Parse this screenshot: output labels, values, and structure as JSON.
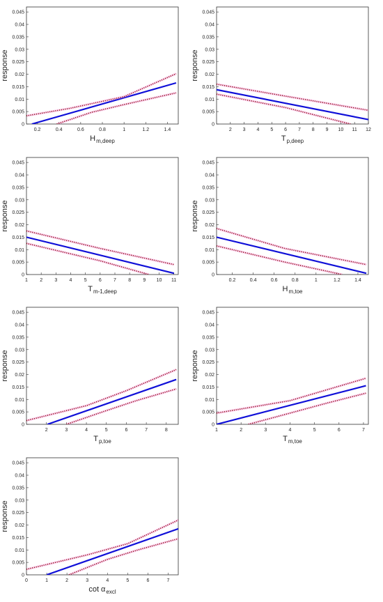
{
  "chart_data": [
    {
      "type": "line",
      "ylabel": "response",
      "xlabel": {
        "main": "H",
        "sub": "m,deep"
      },
      "xlim": [
        0.1,
        1.5
      ],
      "ylim": [
        0,
        0.047
      ],
      "xticks": [
        0.2,
        0.4,
        0.6,
        0.8,
        1,
        1.2,
        1.4
      ],
      "xtick_labels": [
        "0.2",
        "0.4",
        "0.6",
        "0.8",
        "1",
        "1.2",
        "1.4"
      ],
      "yticks": [
        0,
        0.005,
        0.01,
        0.015,
        0.02,
        0.025,
        0.03,
        0.035,
        0.04,
        0.045
      ],
      "ytick_labels": [
        "0",
        "0.005",
        "0.01",
        "0.015",
        "0.02",
        "0.025",
        "0.03",
        "0.035",
        "0.04",
        "0.045"
      ],
      "series": [
        {
          "role": "fit",
          "x": [
            0.15,
            1.48
          ],
          "y": [
            0.0,
            0.0165
          ]
        },
        {
          "role": "upper",
          "x": [
            0.1,
            0.5,
            1.0,
            1.48
          ],
          "y": [
            0.0033,
            0.0063,
            0.011,
            0.0202
          ]
        },
        {
          "role": "lower",
          "x": [
            0.38,
            0.7,
            1.0,
            1.48
          ],
          "y": [
            0.0,
            0.0047,
            0.0078,
            0.0125
          ]
        }
      ]
    },
    {
      "type": "line",
      "ylabel": "response",
      "xlabel": {
        "main": "T",
        "sub": "p,deep"
      },
      "xlim": [
        1,
        12
      ],
      "ylim": [
        0,
        0.047
      ],
      "xticks": [
        2,
        3,
        4,
        5,
        6,
        7,
        8,
        9,
        10,
        11,
        12
      ],
      "xtick_labels": [
        "2",
        "3",
        "4",
        "5",
        "6",
        "7",
        "8",
        "9",
        "10",
        "11",
        "12"
      ],
      "yticks": [
        0,
        0.005,
        0.01,
        0.015,
        0.02,
        0.025,
        0.03,
        0.035,
        0.04,
        0.045
      ],
      "ytick_labels": [
        "0",
        "0.005",
        "0.01",
        "0.015",
        "0.02",
        "0.025",
        "0.03",
        "0.035",
        "0.04",
        "0.045"
      ],
      "series": [
        {
          "role": "fit",
          "x": [
            1,
            12
          ],
          "y": [
            0.0138,
            0.0018
          ]
        },
        {
          "role": "upper",
          "x": [
            1,
            6,
            12
          ],
          "y": [
            0.016,
            0.0112,
            0.0055
          ]
        },
        {
          "role": "lower",
          "x": [
            1,
            6,
            10.7
          ],
          "y": [
            0.012,
            0.0066,
            0.0
          ]
        }
      ]
    },
    {
      "type": "line",
      "ylabel": "response",
      "xlabel": {
        "main": "T",
        "sub": "m-1,deep"
      },
      "xlim": [
        1,
        11.3
      ],
      "ylim": [
        0,
        0.047
      ],
      "xticks": [
        1,
        2,
        3,
        4,
        5,
        6,
        7,
        8,
        9,
        10,
        11
      ],
      "xtick_labels": [
        "1",
        "2",
        "3",
        "4",
        "5",
        "6",
        "7",
        "8",
        "9",
        "10",
        "11"
      ],
      "yticks": [
        0,
        0.005,
        0.01,
        0.015,
        0.02,
        0.025,
        0.03,
        0.035,
        0.04,
        0.045
      ],
      "ytick_labels": [
        "0",
        "0.005",
        "0.01",
        "0.015",
        "0.02",
        "0.025",
        "0.03",
        "0.035",
        "0.04",
        "0.045"
      ],
      "series": [
        {
          "role": "fit",
          "x": [
            1,
            11
          ],
          "y": [
            0.015,
            0.0005
          ]
        },
        {
          "role": "upper",
          "x": [
            1,
            6,
            11
          ],
          "y": [
            0.0175,
            0.0105,
            0.004
          ]
        },
        {
          "role": "lower",
          "x": [
            1,
            6,
            9.3
          ],
          "y": [
            0.0125,
            0.0055,
            0.0
          ]
        }
      ]
    },
    {
      "type": "line",
      "ylabel": "response",
      "xlabel": {
        "main": "H",
        "sub": "m,toe"
      },
      "xlim": [
        0.05,
        1.5
      ],
      "ylim": [
        0,
        0.047
      ],
      "xticks": [
        0.2,
        0.4,
        0.6,
        0.8,
        1,
        1.2,
        1.4
      ],
      "xtick_labels": [
        "0.2",
        "0.4",
        "0.6",
        "0.8",
        "1",
        "1.2",
        "1.4"
      ],
      "yticks": [
        0,
        0.005,
        0.01,
        0.015,
        0.02,
        0.025,
        0.03,
        0.035,
        0.04,
        0.045
      ],
      "ytick_labels": [
        "0",
        "0.005",
        "0.01",
        "0.015",
        "0.02",
        "0.025",
        "0.03",
        "0.035",
        "0.04",
        "0.045"
      ],
      "series": [
        {
          "role": "fit",
          "x": [
            0.05,
            1.48
          ],
          "y": [
            0.015,
            0.0005
          ]
        },
        {
          "role": "upper",
          "x": [
            0.05,
            0.7,
            1.48
          ],
          "y": [
            0.0185,
            0.0105,
            0.004
          ]
        },
        {
          "role": "lower",
          "x": [
            0.05,
            0.7,
            1.25
          ],
          "y": [
            0.0115,
            0.005,
            0.0
          ]
        }
      ]
    },
    {
      "type": "line",
      "ylabel": "response",
      "xlabel": {
        "main": "T",
        "sub": "p,toe"
      },
      "xlim": [
        1,
        8.6
      ],
      "ylim": [
        0,
        0.047
      ],
      "xticks": [
        2,
        3,
        4,
        5,
        6,
        7,
        8
      ],
      "xtick_labels": [
        "2",
        "3",
        "4",
        "5",
        "6",
        "7",
        "8"
      ],
      "yticks": [
        0,
        0.005,
        0.01,
        0.015,
        0.02,
        0.025,
        0.03,
        0.035,
        0.04,
        0.045
      ],
      "ytick_labels": [
        "0",
        "0.005",
        "0.01",
        "0.015",
        "0.02",
        "0.025",
        "0.03",
        "0.035",
        "0.04",
        "0.045"
      ],
      "series": [
        {
          "role": "fit",
          "x": [
            2.05,
            8.5
          ],
          "y": [
            0.0,
            0.018
          ]
        },
        {
          "role": "upper",
          "x": [
            1,
            4,
            6,
            8.5
          ],
          "y": [
            0.0015,
            0.0075,
            0.0135,
            0.022
          ]
        },
        {
          "role": "lower",
          "x": [
            3.0,
            5,
            6.5,
            8.5
          ],
          "y": [
            0.0,
            0.0055,
            0.0095,
            0.0142
          ]
        }
      ]
    },
    {
      "type": "line",
      "ylabel": "response",
      "xlabel": {
        "main": "T",
        "sub": "m,toe"
      },
      "xlim": [
        1,
        7.2
      ],
      "ylim": [
        0,
        0.047
      ],
      "xticks": [
        1,
        2,
        3,
        4,
        5,
        6,
        7
      ],
      "xtick_labels": [
        "1",
        "2",
        "3",
        "4",
        "5",
        "6",
        "7"
      ],
      "yticks": [
        0,
        0.005,
        0.01,
        0.015,
        0.02,
        0.025,
        0.03,
        0.035,
        0.04,
        0.045
      ],
      "ytick_labels": [
        "0",
        "0.005",
        "0.01",
        "0.015",
        "0.02",
        "0.025",
        "0.03",
        "0.035",
        "0.04",
        "0.045"
      ],
      "series": [
        {
          "role": "fit",
          "x": [
            1,
            7.1
          ],
          "y": [
            0.0,
            0.0155
          ]
        },
        {
          "role": "upper",
          "x": [
            1,
            4,
            7.1
          ],
          "y": [
            0.0045,
            0.0095,
            0.0185
          ]
        },
        {
          "role": "lower",
          "x": [
            2.3,
            4,
            5.5,
            7.1
          ],
          "y": [
            0.0,
            0.0045,
            0.0085,
            0.0125
          ]
        }
      ]
    },
    {
      "type": "line",
      "ylabel": "response",
      "xlabel": {
        "main": "cot α",
        "sub": "excl"
      },
      "xlim": [
        0,
        7.5
      ],
      "ylim": [
        0,
        0.047
      ],
      "xticks": [
        0,
        1,
        2,
        3,
        4,
        5,
        6,
        7
      ],
      "xtick_labels": [
        "0",
        "1",
        "2",
        "3",
        "4",
        "5",
        "6",
        "7"
      ],
      "yticks": [
        0,
        0.005,
        0.01,
        0.015,
        0.02,
        0.025,
        0.03,
        0.035,
        0.04,
        0.045
      ],
      "ytick_labels": [
        "0",
        "0.005",
        "0.01",
        "0.015",
        "0.02",
        "0.025",
        "0.03",
        "0.035",
        "0.04",
        "0.045"
      ],
      "series": [
        {
          "role": "fit",
          "x": [
            1.0,
            7.5
          ],
          "y": [
            0.0,
            0.0185
          ]
        },
        {
          "role": "upper",
          "x": [
            0,
            3,
            5,
            7.5
          ],
          "y": [
            0.0022,
            0.008,
            0.0125,
            0.022
          ]
        },
        {
          "role": "lower",
          "x": [
            2.1,
            4,
            5.5,
            7.5
          ],
          "y": [
            0.0,
            0.0062,
            0.01,
            0.0145
          ]
        }
      ]
    }
  ],
  "style": {
    "fit_color": "#1010d8",
    "ci_dot_color": "#8a1414",
    "ci_halo_color": "#ff88dd",
    "axis_color": "#333333"
  }
}
